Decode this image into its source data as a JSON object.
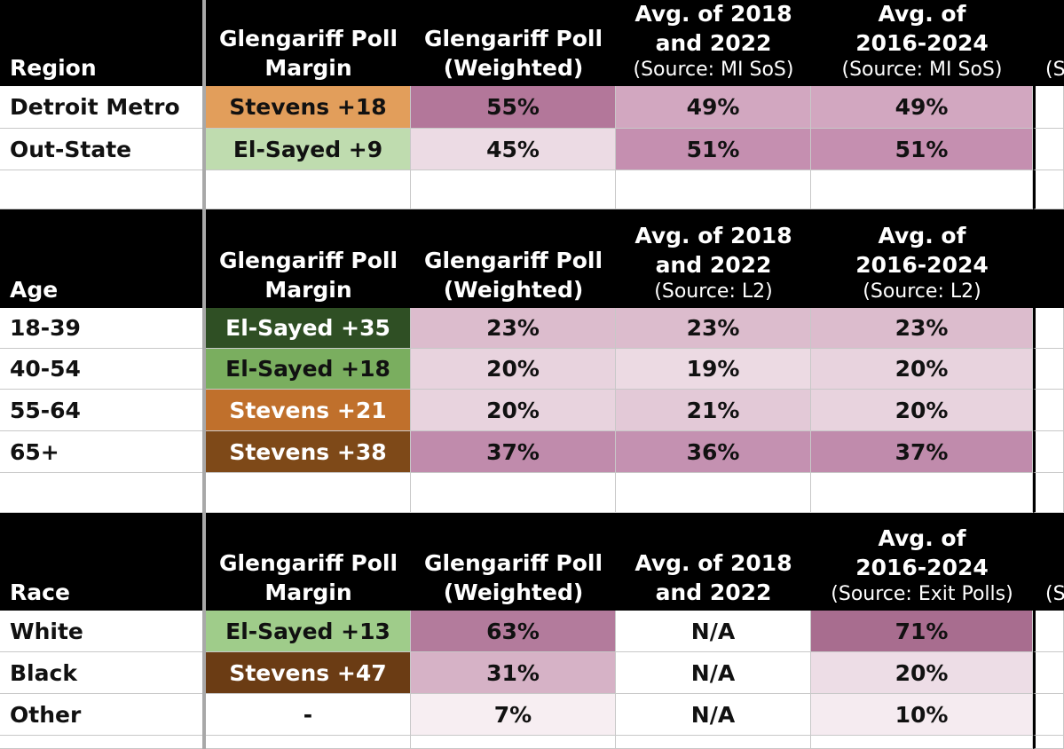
{
  "sections": [
    {
      "header": {
        "category": "Region",
        "margin": [
          "Glengariff Poll",
          "Margin"
        ],
        "weighted": [
          "Glengariff Poll",
          "(Weighted)"
        ],
        "avg1822": [
          "Avg. of 2018",
          "and 2022"
        ],
        "avg1822_source": "(Source: MI SoS)",
        "avg1624": [
          "Avg. of",
          "2016-2024"
        ],
        "avg1624_source": "(Source: MI SoS)",
        "trunc": "(S"
      },
      "rows": [
        {
          "label": "Detroit Metro",
          "margin": "Stevens +18",
          "margin_bg": "#e29e5b",
          "margin_fg": "#111111",
          "weighted": "55%",
          "weighted_bg": "#b3779a",
          "avg1822": "49%",
          "avg1822_bg": "#d2a7c0",
          "avg1624": "49%",
          "avg1624_bg": "#d2a7c0"
        },
        {
          "label": "Out-State",
          "margin": "El-Sayed +9",
          "margin_bg": "#bfdcaf",
          "margin_fg": "#111111",
          "weighted": "45%",
          "weighted_bg": "#ecdbe4",
          "avg1822": "51%",
          "avg1822_bg": "#c58fb0",
          "avg1624": "51%",
          "avg1624_bg": "#c58fb0"
        }
      ]
    },
    {
      "header": {
        "category": "Age",
        "margin": [
          "Glengariff Poll",
          "Margin"
        ],
        "weighted": [
          "Glengariff Poll",
          "(Weighted)"
        ],
        "avg1822": [
          "Avg. of 2018",
          "and 2022"
        ],
        "avg1822_source": "(Source: L2)",
        "avg1624": [
          "Avg. of",
          "2016-2024"
        ],
        "avg1624_source": "(Source: L2)",
        "trunc": ""
      },
      "rows": [
        {
          "label": "18-39",
          "margin": "El-Sayed +35",
          "margin_bg": "#2f4f24",
          "margin_fg": "#ffffff",
          "weighted": "23%",
          "weighted_bg": "#dcbccd",
          "avg1822": "23%",
          "avg1822_bg": "#dcbccd",
          "avg1624": "23%",
          "avg1624_bg": "#dcbccd"
        },
        {
          "label": "40-54",
          "margin": "El-Sayed +18",
          "margin_bg": "#7aae5f",
          "margin_fg": "#111111",
          "weighted": "20%",
          "weighted_bg": "#e8d3de",
          "avg1822": "19%",
          "avg1822_bg": "#ecdae3",
          "avg1624": "20%",
          "avg1624_bg": "#e8d3de"
        },
        {
          "label": "55-64",
          "margin": "Stevens +21",
          "margin_bg": "#c0702c",
          "margin_fg": "#ffffff",
          "weighted": "20%",
          "weighted_bg": "#e8d3de",
          "avg1822": "21%",
          "avg1822_bg": "#e3c9d7",
          "avg1624": "20%",
          "avg1624_bg": "#e8d3de"
        },
        {
          "label": "65+",
          "margin": "Stevens +38",
          "margin_bg": "#7e4918",
          "margin_fg": "#ffffff",
          "weighted": "37%",
          "weighted_bg": "#c08bac",
          "avg1822": "36%",
          "avg1822_bg": "#c491b1",
          "avg1624": "37%",
          "avg1624_bg": "#c08bac"
        }
      ]
    },
    {
      "header": {
        "category": "Race",
        "margin": [
          "Glengariff Poll",
          "Margin"
        ],
        "weighted": [
          "Glengariff Poll",
          "(Weighted)"
        ],
        "avg1822": [
          "Avg. of 2018",
          "and 2022"
        ],
        "avg1822_source": "",
        "avg1624": [
          "Avg. of",
          "2016-2024"
        ],
        "avg1624_source": "(Source: Exit Polls)",
        "trunc": "(S"
      },
      "rows": [
        {
          "label": "White",
          "margin": "El-Sayed +13",
          "margin_bg": "#9fcc8a",
          "margin_fg": "#111111",
          "weighted": "63%",
          "weighted_bg": "#b37b9c",
          "avg1822": "N/A",
          "avg1822_bg": "#ffffff",
          "avg1624": "71%",
          "avg1624_bg": "#a86d8f"
        },
        {
          "label": "Black",
          "margin": "Stevens +47",
          "margin_bg": "#6b3c14",
          "margin_fg": "#ffffff",
          "weighted": "31%",
          "weighted_bg": "#d6b2c6",
          "avg1822": "N/A",
          "avg1822_bg": "#ffffff",
          "avg1624": "20%",
          "avg1624_bg": "#eddde6"
        },
        {
          "label": "Other",
          "margin": "-",
          "margin_bg": "#ffffff",
          "margin_fg": "#111111",
          "weighted": "7%",
          "weighted_bg": "#f7eef2",
          "avg1822": "N/A",
          "avg1822_bg": "#ffffff",
          "avg1624": "10%",
          "avg1624_bg": "#f5ebf0"
        }
      ]
    }
  ]
}
